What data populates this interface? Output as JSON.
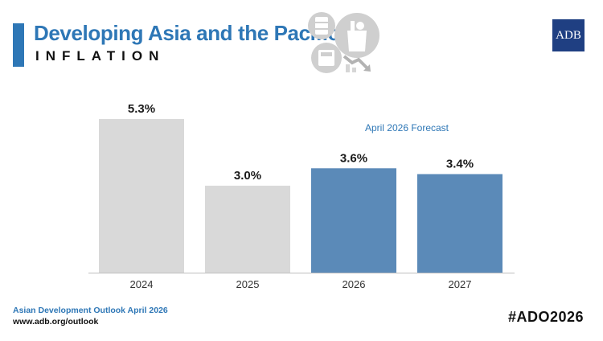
{
  "header": {
    "title": "Developing Asia and the Pacific",
    "subtitle": "INFLATION",
    "logo": "ADB",
    "icons": [
      "fuel-barrel-icon",
      "groceries-bag-icon",
      "cash-register-icon",
      "price-decline-icon"
    ]
  },
  "chart_data": {
    "type": "bar",
    "title": "Inflation",
    "categories": [
      "2024",
      "2025",
      "2026",
      "2027"
    ],
    "values": [
      5.3,
      3.0,
      3.6,
      3.4
    ],
    "value_labels": [
      "5.3%",
      "3.0%",
      "3.6%",
      "3.4%"
    ],
    "series_type": [
      "actual",
      "actual",
      "forecast",
      "forecast"
    ],
    "annotation": "April 2026 Forecast",
    "unit": "%",
    "xlabel": "",
    "ylabel": "",
    "ylim": [
      0,
      5.3
    ],
    "grid": false,
    "colors": {
      "actual": "#d9d9d9",
      "forecast": "#5b8ab8",
      "annotation": "#2e77b6",
      "baseline": "#bfbfbf"
    }
  },
  "footer": {
    "publication": "Asian Development Outlook April 2026",
    "url": "www.adb.org/outlook",
    "hashtag": "#ADO2026"
  }
}
